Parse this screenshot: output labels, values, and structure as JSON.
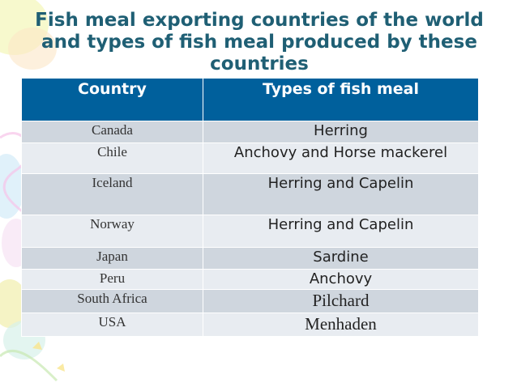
{
  "slide": {
    "title": "Fish meal exporting countries of the world and types of fish meal produced by these countries"
  },
  "table": {
    "headers": [
      "Country",
      "Types of fish meal"
    ],
    "rows": [
      {
        "country": "Canada",
        "meal": "Herring"
      },
      {
        "country": "Chile",
        "meal": "Anchovy and Horse mackerel"
      },
      {
        "country": "Iceland",
        "meal": "Herring and Capelin"
      },
      {
        "country": "Norway",
        "meal": "Herring and Capelin"
      },
      {
        "country": "Japan",
        "meal": "Sardine"
      },
      {
        "country": "Peru",
        "meal": "Anchovy"
      },
      {
        "country": "South Africa",
        "meal": "Pilchard"
      },
      {
        "country": "USA",
        "meal": "Menhaden"
      }
    ]
  },
  "colors": {
    "title": "#1f5f74",
    "header_bg": "#00609c",
    "row_dark": "#cfd6de",
    "row_light": "#e8ecf1"
  }
}
